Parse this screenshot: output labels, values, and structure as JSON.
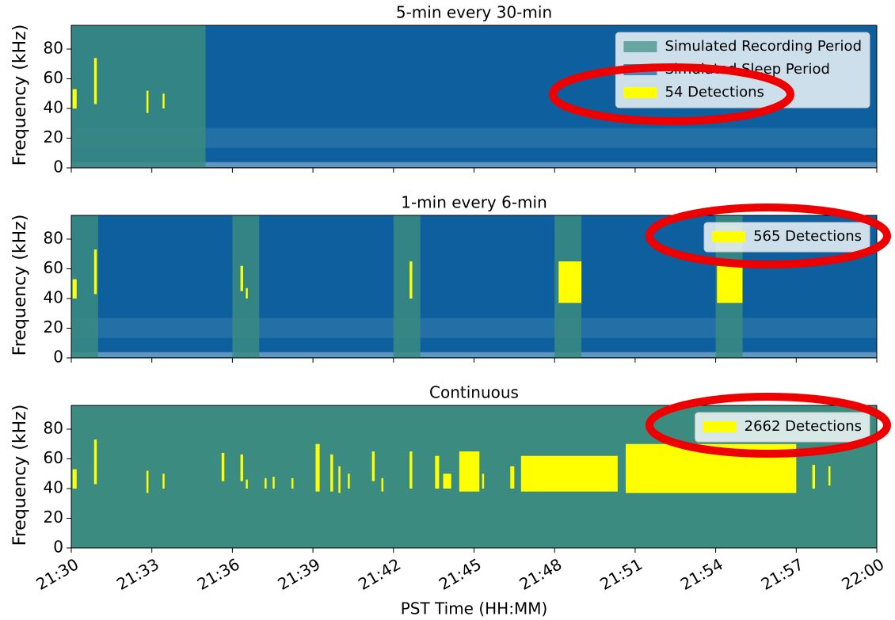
{
  "chart_data": [
    {
      "type": "spectrogram",
      "title": "5-min every 30-min",
      "ylabel": "Frequency (kHz)",
      "ylim": [
        0,
        96
      ],
      "yticks": [
        0,
        20,
        40,
        60,
        80
      ],
      "xlim": [
        0,
        30
      ],
      "recording": {
        "name": "Simulated Recording Period",
        "color": "#3b8b80",
        "periods": [
          [
            0,
            5
          ]
        ]
      },
      "sleep": {
        "name": "Simulated Sleep Period",
        "color": "#0d5f9e"
      },
      "detections": {
        "name": "54 Detections",
        "color": "#ffff00",
        "blobs": [
          [
            0.05,
            0.2,
            40,
            53
          ],
          [
            0.85,
            0.95,
            43,
            74
          ],
          [
            2.8,
            2.85,
            37,
            52
          ],
          [
            3.4,
            3.45,
            40,
            50
          ]
        ]
      }
    },
    {
      "type": "spectrogram",
      "title": "1-min every 6-min",
      "ylabel": "Frequency (kHz)",
      "ylim": [
        0,
        96
      ],
      "yticks": [
        0,
        20,
        40,
        60,
        80
      ],
      "xlim": [
        0,
        30
      ],
      "recording": {
        "color": "#3b8b80",
        "periods": [
          [
            0,
            1
          ],
          [
            6,
            7
          ],
          [
            12,
            13
          ],
          [
            18,
            19
          ],
          [
            24,
            25
          ]
        ]
      },
      "sleep": {
        "color": "#0d5f9e"
      },
      "detections": {
        "name": "565 Detections",
        "color": "#ffff00",
        "blobs": [
          [
            0.05,
            0.2,
            40,
            53
          ],
          [
            0.85,
            0.95,
            43,
            73
          ],
          [
            6.3,
            6.4,
            45,
            62
          ],
          [
            6.5,
            6.55,
            40,
            47
          ],
          [
            12.6,
            12.7,
            40,
            65
          ],
          [
            18.15,
            19.0,
            37,
            65
          ],
          [
            24.05,
            25.0,
            37,
            62
          ]
        ]
      }
    },
    {
      "type": "spectrogram",
      "title": "Continuous",
      "ylabel": "Frequency (kHz)",
      "ylim": [
        0,
        96
      ],
      "yticks": [
        0,
        20,
        40,
        60,
        80
      ],
      "xlim": [
        0,
        30
      ],
      "xlabel": "PST Time (HH:MM)",
      "xticks": [
        {
          "value": 0,
          "label": "21:30"
        },
        {
          "value": 3,
          "label": "21:33"
        },
        {
          "value": 6,
          "label": "21:36"
        },
        {
          "value": 9,
          "label": "21:39"
        },
        {
          "value": 12,
          "label": "21:42"
        },
        {
          "value": 15,
          "label": "21:45"
        },
        {
          "value": 18,
          "label": "21:48"
        },
        {
          "value": 21,
          "label": "21:51"
        },
        {
          "value": 24,
          "label": "21:54"
        },
        {
          "value": 27,
          "label": "21:57"
        },
        {
          "value": 30,
          "label": "22:00"
        }
      ],
      "recording": {
        "color": "#3b8b80",
        "periods": [
          [
            0,
            30
          ]
        ]
      },
      "detections": {
        "name": "2662 Detections",
        "color": "#ffff00",
        "blobs": [
          [
            0.05,
            0.2,
            40,
            53
          ],
          [
            0.85,
            0.95,
            43,
            73
          ],
          [
            2.8,
            2.85,
            37,
            52
          ],
          [
            3.4,
            3.45,
            40,
            50
          ],
          [
            5.6,
            5.7,
            45,
            64
          ],
          [
            6.3,
            6.4,
            45,
            63
          ],
          [
            6.5,
            6.55,
            40,
            46
          ],
          [
            7.2,
            7.25,
            40,
            47
          ],
          [
            7.5,
            7.55,
            40,
            48
          ],
          [
            8.2,
            8.25,
            40,
            47
          ],
          [
            9.1,
            9.25,
            38,
            70
          ],
          [
            9.65,
            9.75,
            38,
            63
          ],
          [
            9.95,
            10.0,
            37,
            55
          ],
          [
            10.3,
            10.35,
            40,
            50
          ],
          [
            11.2,
            11.3,
            45,
            65
          ],
          [
            11.55,
            11.6,
            38,
            47
          ],
          [
            12.6,
            12.7,
            40,
            65
          ],
          [
            13.55,
            13.7,
            40,
            62
          ],
          [
            13.85,
            14.15,
            40,
            50
          ],
          [
            14.45,
            15.2,
            38,
            65
          ],
          [
            15.3,
            15.35,
            40,
            50
          ],
          [
            16.35,
            16.5,
            40,
            55
          ],
          [
            16.75,
            20.35,
            38,
            62
          ],
          [
            20.65,
            27.0,
            37,
            70
          ],
          [
            27.6,
            27.7,
            40,
            56
          ],
          [
            28.2,
            28.25,
            42,
            55
          ]
        ]
      }
    }
  ]
}
